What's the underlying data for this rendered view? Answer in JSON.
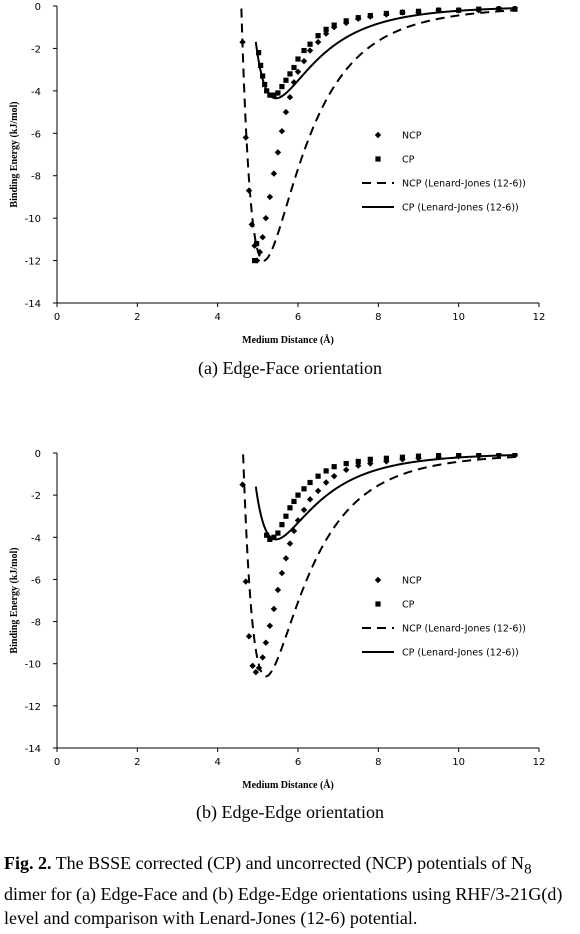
{
  "chart_data": [
    {
      "type": "scatter",
      "xlabel": "Medium  Distance (Å)",
      "ylabel": "Binding Energy (kJ/mol)",
      "xlim": [
        0,
        12
      ],
      "ylim": [
        -14,
        0
      ],
      "xticks": [
        "0",
        "2",
        "4",
        "6",
        "8",
        "10",
        "12"
      ],
      "yticks": [
        "0",
        "-2",
        "-4",
        "-6",
        "-8",
        "-10",
        "-12",
        "-14"
      ],
      "grid": false,
      "legend_position": "right",
      "subcaption": "(a) Edge-Face orientation",
      "series": [
        {
          "name": "NCP",
          "marker": "diamond",
          "points": [
            [
              4.62,
              -1.7
            ],
            [
              4.7,
              -6.2
            ],
            [
              4.78,
              -8.7
            ],
            [
              4.85,
              -10.3
            ],
            [
              4.92,
              -11.3
            ],
            [
              4.98,
              -12.0
            ],
            [
              5.05,
              -11.6
            ],
            [
              5.12,
              -10.9
            ],
            [
              5.2,
              -10.0
            ],
            [
              5.3,
              -9.0
            ],
            [
              5.4,
              -7.9
            ],
            [
              5.5,
              -6.9
            ],
            [
              5.6,
              -5.9
            ],
            [
              5.7,
              -5.0
            ],
            [
              5.8,
              -4.3
            ],
            [
              5.9,
              -3.6
            ],
            [
              6.0,
              -3.1
            ],
            [
              6.15,
              -2.6
            ],
            [
              6.3,
              -2.1
            ],
            [
              6.5,
              -1.7
            ],
            [
              6.7,
              -1.3
            ],
            [
              6.9,
              -1.0
            ],
            [
              7.2,
              -0.8
            ],
            [
              7.5,
              -0.6
            ],
            [
              7.8,
              -0.5
            ],
            [
              8.2,
              -0.4
            ],
            [
              8.6,
              -0.3
            ],
            [
              9.0,
              -0.3
            ],
            [
              9.5,
              -0.2
            ],
            [
              10.0,
              -0.2
            ],
            [
              10.5,
              -0.2
            ],
            [
              11.0,
              -0.1
            ],
            [
              11.4,
              -0.1
            ]
          ]
        },
        {
          "name": "CP",
          "marker": "square",
          "points": [
            [
              4.92,
              -12.0
            ],
            [
              4.97,
              -11.2
            ],
            [
              5.02,
              -2.2
            ],
            [
              5.07,
              -2.8
            ],
            [
              5.12,
              -3.3
            ],
            [
              5.17,
              -3.7
            ],
            [
              5.22,
              -4.0
            ],
            [
              5.3,
              -4.2
            ],
            [
              5.4,
              -4.2
            ],
            [
              5.5,
              -4.1
            ],
            [
              5.6,
              -3.8
            ],
            [
              5.7,
              -3.5
            ],
            [
              5.8,
              -3.2
            ],
            [
              5.9,
              -2.9
            ],
            [
              6.0,
              -2.5
            ],
            [
              6.15,
              -2.1
            ],
            [
              6.3,
              -1.8
            ],
            [
              6.5,
              -1.4
            ],
            [
              6.7,
              -1.1
            ],
            [
              6.9,
              -0.9
            ],
            [
              7.2,
              -0.7
            ],
            [
              7.5,
              -0.55
            ],
            [
              7.8,
              -0.45
            ],
            [
              8.2,
              -0.35
            ],
            [
              8.6,
              -0.3
            ],
            [
              9.0,
              -0.25
            ],
            [
              9.5,
              -0.2
            ],
            [
              10.0,
              -0.2
            ],
            [
              10.5,
              -0.15
            ],
            [
              11.0,
              -0.15
            ],
            [
              11.4,
              -0.15
            ]
          ]
        },
        {
          "name": "NCP (Lenard-Jones (12-6))",
          "line": "dashed",
          "epsilon": 12.0,
          "rmin": 5.15,
          "x_range": [
            4.55,
            11.45
          ]
        },
        {
          "name": "CP (Lenard-Jones (12-6))",
          "line": "solid",
          "epsilon": 4.35,
          "rmin": 5.45,
          "x_range": [
            4.95,
            11.45
          ]
        }
      ]
    },
    {
      "type": "scatter",
      "xlabel": "Medium  Distance (Å)",
      "ylabel": "Binding Energy (kJ/mol)",
      "xlim": [
        0,
        12
      ],
      "ylim": [
        -14,
        0
      ],
      "xticks": [
        "0",
        "2",
        "4",
        "6",
        "8",
        "10",
        "12"
      ],
      "yticks": [
        "0",
        "-2",
        "-4",
        "-6",
        "-8",
        "-10",
        "-12",
        "-14"
      ],
      "grid": false,
      "legend_position": "right",
      "subcaption": "(b) Edge-Edge orientation",
      "series": [
        {
          "name": "NCP",
          "marker": "diamond",
          "points": [
            [
              4.62,
              -1.5
            ],
            [
              4.7,
              -6.1
            ],
            [
              4.78,
              -8.7
            ],
            [
              4.87,
              -10.1
            ],
            [
              4.95,
              -10.4
            ],
            [
              5.03,
              -10.2
            ],
            [
              5.12,
              -9.7
            ],
            [
              5.2,
              -9.0
            ],
            [
              5.3,
              -8.2
            ],
            [
              5.4,
              -7.4
            ],
            [
              5.5,
              -6.5
            ],
            [
              5.6,
              -5.7
            ],
            [
              5.7,
              -5.0
            ],
            [
              5.8,
              -4.3
            ],
            [
              5.9,
              -3.7
            ],
            [
              6.0,
              -3.2
            ],
            [
              6.15,
              -2.7
            ],
            [
              6.3,
              -2.2
            ],
            [
              6.5,
              -1.8
            ],
            [
              6.7,
              -1.4
            ],
            [
              6.9,
              -1.1
            ],
            [
              7.2,
              -0.8
            ],
            [
              7.5,
              -0.6
            ],
            [
              7.8,
              -0.5
            ],
            [
              8.2,
              -0.4
            ],
            [
              8.6,
              -0.3
            ],
            [
              9.0,
              -0.25
            ],
            [
              9.5,
              -0.2
            ],
            [
              10.0,
              -0.15
            ],
            [
              10.5,
              -0.15
            ],
            [
              11.0,
              -0.1
            ],
            [
              11.4,
              -0.1
            ]
          ]
        },
        {
          "name": "CP",
          "marker": "square",
          "points": [
            [
              5.22,
              -3.9
            ],
            [
              5.3,
              -4.1
            ],
            [
              5.4,
              -4.0
            ],
            [
              5.5,
              -3.8
            ],
            [
              5.6,
              -3.4
            ],
            [
              5.7,
              -3.0
            ],
            [
              5.8,
              -2.6
            ],
            [
              5.9,
              -2.3
            ],
            [
              6.0,
              -2.0
            ],
            [
              6.15,
              -1.7
            ],
            [
              6.3,
              -1.4
            ],
            [
              6.5,
              -1.1
            ],
            [
              6.7,
              -0.85
            ],
            [
              6.9,
              -0.65
            ],
            [
              7.2,
              -0.5
            ],
            [
              7.5,
              -0.4
            ],
            [
              7.8,
              -0.3
            ],
            [
              8.2,
              -0.25
            ],
            [
              8.6,
              -0.2
            ],
            [
              9.0,
              -0.15
            ],
            [
              9.5,
              -0.1
            ],
            [
              10.0,
              -0.1
            ],
            [
              10.5,
              -0.05
            ],
            [
              11.0,
              -0.05
            ],
            [
              11.4,
              -0.05
            ]
          ]
        },
        {
          "name": "NCP (Lenard-Jones (12-6))",
          "line": "dashed",
          "epsilon": 10.6,
          "rmin": 5.2,
          "x_range": [
            4.55,
            11.45
          ]
        },
        {
          "name": "CP (Lenard-Jones (12-6))",
          "line": "solid",
          "epsilon": 4.1,
          "rmin": 5.45,
          "x_range": [
            4.95,
            11.45
          ]
        }
      ]
    }
  ],
  "caption": {
    "label": "Fig. 2.",
    "text_before_sub": " The BSSE corrected (CP) and uncorrected (NCP) potentials of N",
    "subscript": "8",
    "text_after_sub": " dimer for (a) Edge-Face and (b) Edge-Edge orientations using RHF/3-21G(d) level and comparison with Lenard-Jones (12-6) potential."
  }
}
